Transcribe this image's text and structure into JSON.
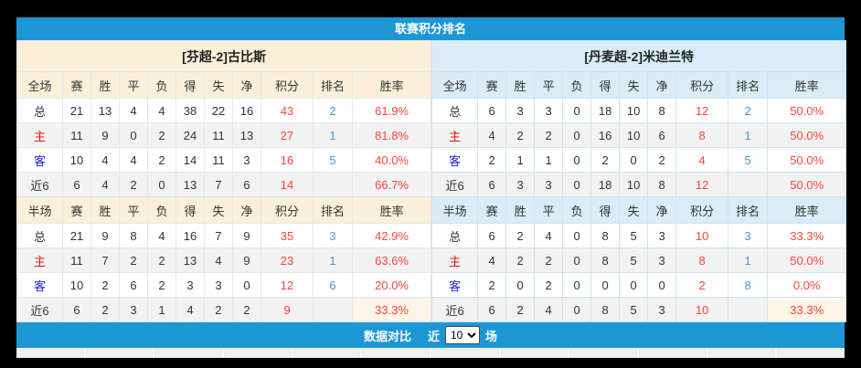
{
  "title": "联赛积分排名",
  "footer": {
    "label": "数据对比",
    "prefix": "近",
    "selected": "10",
    "suffix": "场"
  },
  "columns_full": [
    "全场",
    "赛",
    "胜",
    "平",
    "负",
    "得",
    "失",
    "净",
    "积分",
    "排名",
    "胜率"
  ],
  "columns_half": [
    "半场",
    "赛",
    "胜",
    "平",
    "负",
    "得",
    "失",
    "净",
    "积分",
    "排名",
    "胜率"
  ],
  "teams": [
    {
      "name": "[芬超-2]古比斯",
      "full_rows": [
        {
          "label": "总",
          "label_class": "",
          "values": [
            "21",
            "13",
            "4",
            "4",
            "38",
            "22",
            "16"
          ],
          "points": "43",
          "rank": "2",
          "rate": "61.9%",
          "hl": false
        },
        {
          "label": "主",
          "label_class": "home",
          "values": [
            "11",
            "9",
            "0",
            "2",
            "24",
            "11",
            "13"
          ],
          "points": "27",
          "rank": "1",
          "rate": "81.8%",
          "hl": false
        },
        {
          "label": "客",
          "label_class": "away",
          "values": [
            "10",
            "4",
            "4",
            "2",
            "14",
            "11",
            "3"
          ],
          "points": "16",
          "rank": "5",
          "rate": "40.0%",
          "hl": false
        },
        {
          "label": "近6",
          "label_class": "",
          "values": [
            "6",
            "4",
            "2",
            "0",
            "13",
            "7",
            "6"
          ],
          "points": "14",
          "rank": "",
          "rate": "66.7%",
          "hl": false
        }
      ],
      "half_rows": [
        {
          "label": "总",
          "label_class": "",
          "values": [
            "21",
            "9",
            "8",
            "4",
            "16",
            "7",
            "9"
          ],
          "points": "35",
          "rank": "3",
          "rate": "42.9%",
          "hl": false
        },
        {
          "label": "主",
          "label_class": "home",
          "values": [
            "11",
            "7",
            "2",
            "2",
            "13",
            "4",
            "9"
          ],
          "points": "23",
          "rank": "1",
          "rate": "63.6%",
          "hl": false
        },
        {
          "label": "客",
          "label_class": "away",
          "values": [
            "10",
            "2",
            "6",
            "2",
            "3",
            "3",
            "0"
          ],
          "points": "12",
          "rank": "6",
          "rate": "20.0%",
          "hl": false
        },
        {
          "label": "近6",
          "label_class": "",
          "values": [
            "6",
            "2",
            "3",
            "1",
            "4",
            "2",
            "2"
          ],
          "points": "9",
          "rank": "",
          "rate": "33.3%",
          "hl": true
        }
      ]
    },
    {
      "name": "[丹麦超-2]米迪兰特",
      "full_rows": [
        {
          "label": "总",
          "label_class": "",
          "values": [
            "6",
            "3",
            "3",
            "0",
            "18",
            "10",
            "8"
          ],
          "points": "12",
          "rank": "2",
          "rate": "50.0%",
          "hl": false
        },
        {
          "label": "主",
          "label_class": "home",
          "values": [
            "4",
            "2",
            "2",
            "0",
            "16",
            "10",
            "6"
          ],
          "points": "8",
          "rank": "1",
          "rate": "50.0%",
          "hl": false
        },
        {
          "label": "客",
          "label_class": "away",
          "values": [
            "2",
            "1",
            "1",
            "0",
            "2",
            "0",
            "2"
          ],
          "points": "4",
          "rank": "5",
          "rate": "50.0%",
          "hl": false
        },
        {
          "label": "近6",
          "label_class": "",
          "values": [
            "6",
            "3",
            "3",
            "0",
            "18",
            "10",
            "8"
          ],
          "points": "12",
          "rank": "",
          "rate": "50.0%",
          "hl": false
        }
      ],
      "half_rows": [
        {
          "label": "总",
          "label_class": "",
          "values": [
            "6",
            "2",
            "4",
            "0",
            "8",
            "5",
            "3"
          ],
          "points": "10",
          "rank": "3",
          "rate": "33.3%",
          "hl": false
        },
        {
          "label": "主",
          "label_class": "home",
          "values": [
            "4",
            "2",
            "2",
            "0",
            "8",
            "5",
            "3"
          ],
          "points": "8",
          "rank": "1",
          "rate": "50.0%",
          "hl": false
        },
        {
          "label": "客",
          "label_class": "away",
          "values": [
            "2",
            "0",
            "2",
            "0",
            "0",
            "0",
            "0"
          ],
          "points": "2",
          "rank": "8",
          "rate": "0.0%",
          "hl": false
        },
        {
          "label": "近6",
          "label_class": "",
          "values": [
            "6",
            "2",
            "4",
            "0",
            "8",
            "5",
            "3"
          ],
          "points": "10",
          "rank": "",
          "rate": "33.3%",
          "hl": true
        }
      ]
    }
  ],
  "colors": {
    "header_blue": "#1d97d4",
    "panel_bg": "#ffffff",
    "left_header_bg": "#faf0da",
    "right_header_bg": "#d9ecf7",
    "alt_row_bg": "#f2f2f2",
    "highlight_bg": "#fdf5e8",
    "points_red": "#ff4538",
    "rate_red": "#ff4538",
    "rank_blue": "#4793de",
    "home_red": "#ee1111",
    "away_blue": "#2222dd",
    "left_border": "#e6e6e6",
    "right_border": "#cfe3f1"
  }
}
